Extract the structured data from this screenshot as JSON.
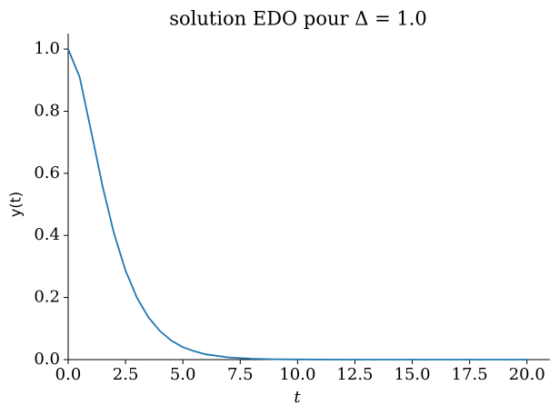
{
  "chart_data": {
    "type": "line",
    "title": "solution EDO pour Δ = 1.0",
    "x_label": "t",
    "y_label": "y(t)",
    "x": [
      0,
      0.5,
      1,
      1.5,
      2,
      2.5,
      3,
      3.5,
      4,
      4.5,
      5,
      5.5,
      6,
      7,
      8,
      9,
      10,
      12.5,
      15,
      17.5,
      20
    ],
    "values": [
      1,
      0.91,
      0.736,
      0.558,
      0.406,
      0.287,
      0.199,
      0.136,
      0.092,
      0.061,
      0.04,
      0.027,
      0.017,
      0.007,
      0.003,
      0.001,
      0.0005,
      0,
      0,
      0,
      0
    ],
    "color": "#1f77b4",
    "xlim": [
      0,
      21
    ],
    "ylim": [
      0,
      1.05
    ],
    "xticks": [
      {
        "value": 0,
        "label": "0.0"
      },
      2.5,
      {
        "value": 5,
        "label": "5.0"
      },
      7.5,
      {
        "value": 10,
        "label": "10.0"
      },
      12.5,
      {
        "value": 15,
        "label": "15.0"
      },
      17.5,
      {
        "value": 20,
        "label": "20.0"
      }
    ],
    "yticks": [
      {
        "value": 0,
        "label": "0.0"
      },
      0.2,
      0.4,
      0.6,
      0.8,
      {
        "value": 1,
        "label": "1.0"
      }
    ],
    "grid": false
  }
}
